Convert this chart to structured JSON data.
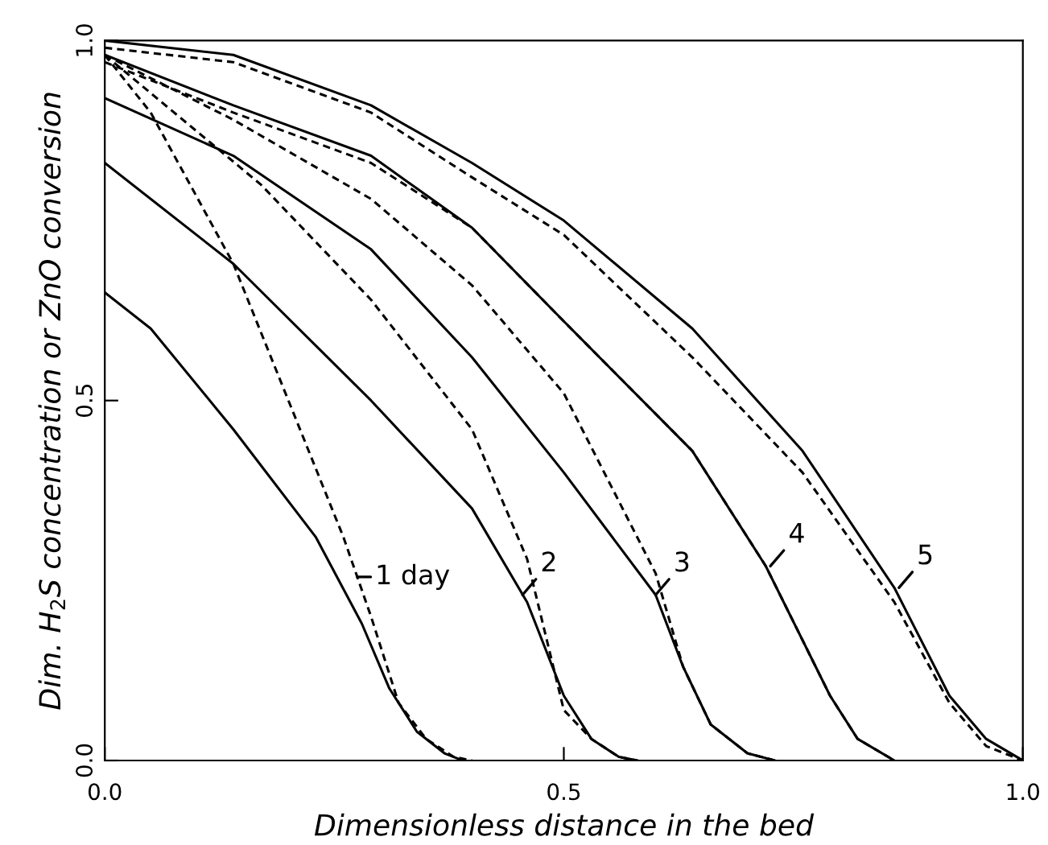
{
  "chart_data": {
    "type": "line",
    "xlabel": "Dimensionless distance in the bed",
    "ylabel": "Dim. H$_{2}$S concentration or ZnO conversion",
    "xlim": [
      0,
      1
    ],
    "ylim": [
      0,
      1
    ],
    "xticks": [
      {
        "value": 0,
        "label": "0.0"
      },
      {
        "value": 0.5,
        "label": "0.5"
      },
      {
        "value": 1,
        "label": "1.0"
      }
    ],
    "yticks": [
      {
        "value": 0,
        "label": "0.0"
      },
      {
        "value": 0.5,
        "label": "0.5"
      },
      {
        "value": 1,
        "label": "1.0"
      }
    ],
    "grid": false,
    "legend": false,
    "marker": "none",
    "series": [
      {
        "color": "#000000",
        "line_style": "solid",
        "x": [
          0,
          0.05,
          0.14,
          0.23,
          0.28,
          0.31,
          0.34,
          0.37,
          0.39
        ],
        "values": [
          0.65,
          0.6,
          0.46,
          0.31,
          0.19,
          0.1,
          0.04,
          0.01,
          0
        ]
      },
      {
        "color": "#000000",
        "line_style": "solid",
        "x": [
          0,
          0.14,
          0.29,
          0.4,
          0.46,
          0.5,
          0.53,
          0.56,
          0.58
        ],
        "values": [
          0.83,
          0.69,
          0.5,
          0.35,
          0.22,
          0.09,
          0.03,
          0.005,
          0
        ]
      },
      {
        "color": "#000000",
        "line_style": "solid",
        "x": [
          0,
          0.14,
          0.29,
          0.4,
          0.5,
          0.6,
          0.63,
          0.66,
          0.7,
          0.73
        ],
        "values": [
          0.92,
          0.84,
          0.71,
          0.56,
          0.4,
          0.23,
          0.13,
          0.05,
          0.01,
          0
        ]
      },
      {
        "color": "#000000",
        "line_style": "solid",
        "x": [
          0,
          0.14,
          0.29,
          0.4,
          0.5,
          0.64,
          0.72,
          0.79,
          0.82,
          0.86
        ],
        "values": [
          0.98,
          0.91,
          0.84,
          0.74,
          0.61,
          0.43,
          0.27,
          0.09,
          0.03,
          0
        ]
      },
      {
        "color": "#000000",
        "line_style": "solid",
        "x": [
          0,
          0.14,
          0.29,
          0.4,
          0.5,
          0.64,
          0.76,
          0.86,
          0.92,
          0.96,
          1.0
        ],
        "values": [
          1.0,
          0.98,
          0.91,
          0.83,
          0.75,
          0.6,
          0.43,
          0.24,
          0.09,
          0.03,
          0
        ]
      },
      {
        "color": "#000000",
        "line_style": "dashed",
        "x": [
          0,
          0.05,
          0.14,
          0.2,
          0.26,
          0.29,
          0.32,
          0.35,
          0.38,
          0.4
        ],
        "values": [
          0.98,
          0.9,
          0.69,
          0.5,
          0.31,
          0.2,
          0.08,
          0.03,
          0.005,
          0
        ]
      },
      {
        "color": "#000000",
        "line_style": "dashed",
        "x": [
          0,
          0.17,
          0.29,
          0.4,
          0.46,
          0.5,
          0.53,
          0.56,
          0.58
        ],
        "values": [
          0.98,
          0.8,
          0.64,
          0.46,
          0.28,
          0.07,
          0.03,
          0.005,
          0
        ]
      },
      {
        "color": "#000000",
        "line_style": "dashed",
        "x": [
          0,
          0.14,
          0.29,
          0.4,
          0.5,
          0.6,
          0.63,
          0.66,
          0.7,
          0.73
        ],
        "values": [
          0.98,
          0.89,
          0.78,
          0.66,
          0.51,
          0.26,
          0.13,
          0.05,
          0.01,
          0
        ]
      },
      {
        "color": "#000000",
        "line_style": "dashed",
        "x": [
          0,
          0.14,
          0.29,
          0.4,
          0.5,
          0.64,
          0.72,
          0.79,
          0.82,
          0.86
        ],
        "values": [
          0.97,
          0.9,
          0.83,
          0.74,
          0.61,
          0.43,
          0.27,
          0.09,
          0.03,
          0
        ]
      },
      {
        "color": "#000000",
        "line_style": "dashed",
        "x": [
          0,
          0.14,
          0.29,
          0.4,
          0.5,
          0.64,
          0.76,
          0.86,
          0.92,
          0.96,
          1.0
        ],
        "values": [
          0.99,
          0.97,
          0.9,
          0.81,
          0.73,
          0.56,
          0.4,
          0.22,
          0.08,
          0.02,
          0
        ]
      }
    ],
    "annotations": [
      {
        "text": "1 day",
        "x": 0.275,
        "y": 0.255
      },
      {
        "text": "2",
        "x": 0.455,
        "y": 0.23
      },
      {
        "text": "3",
        "x": 0.6,
        "y": 0.23
      },
      {
        "text": "4",
        "x": 0.725,
        "y": 0.27
      },
      {
        "text": "5",
        "x": 0.865,
        "y": 0.24
      }
    ]
  }
}
